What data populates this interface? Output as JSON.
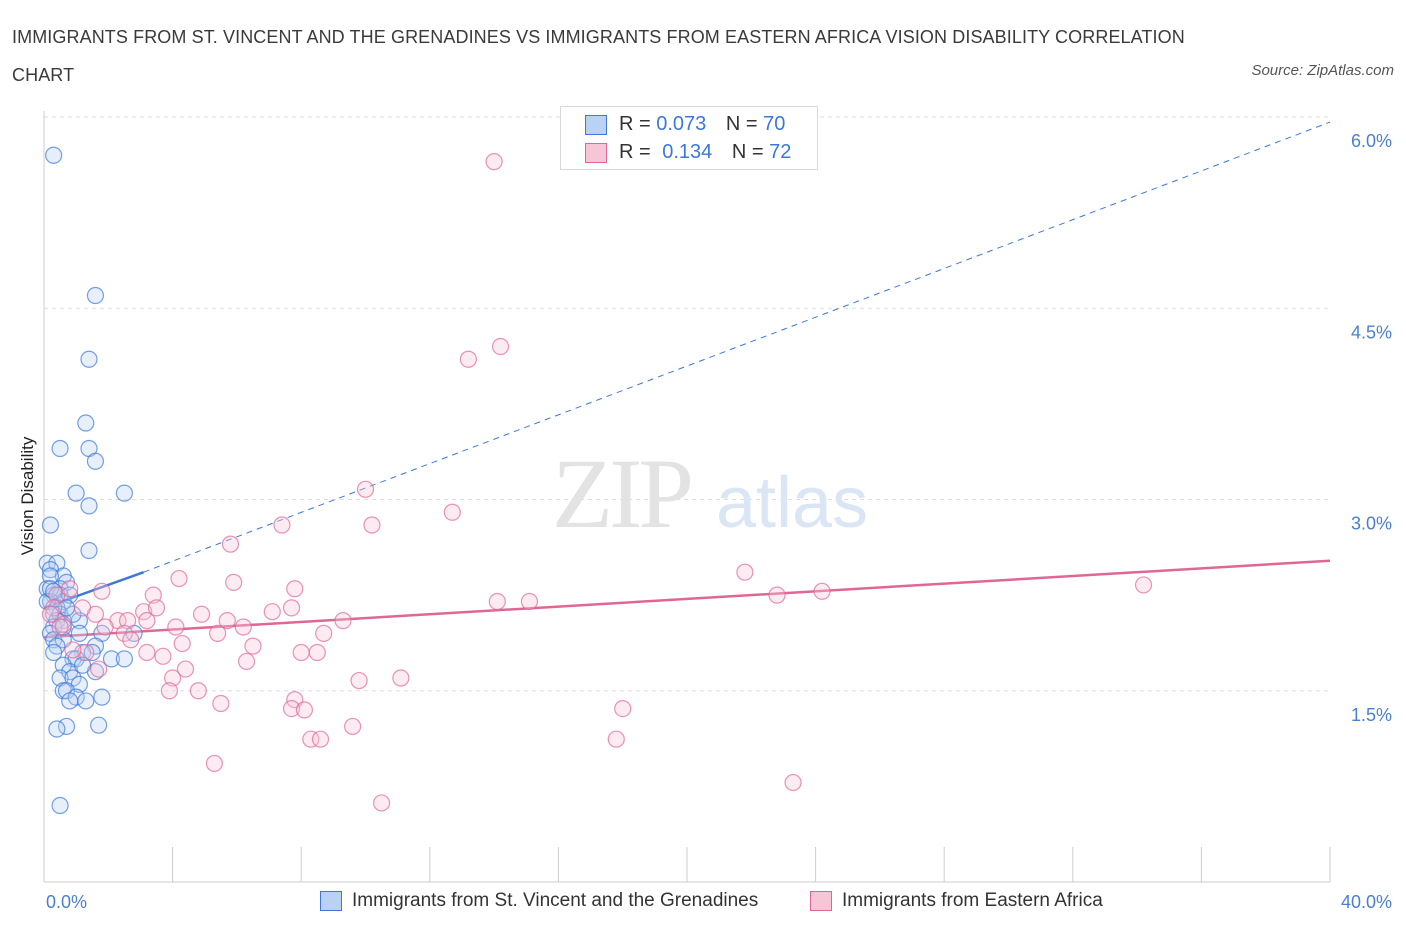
{
  "title": "IMMIGRANTS FROM ST. VINCENT AND THE GRENADINES VS IMMIGRANTS FROM EASTERN AFRICA VISION DISABILITY CORRELATION CHART",
  "source": "Source: ZipAtlas.com",
  "watermark": {
    "zip": "ZIP",
    "atlas": "atlas"
  },
  "legend": {
    "r_label": "R =",
    "n_label": "N =",
    "series1": {
      "r": "0.073",
      "n": "70"
    },
    "series2": {
      "r": "0.134",
      "n": "72"
    }
  },
  "colors": {
    "blue": "#3b78d8",
    "blue_fill": "#b9d1f3",
    "pink": "#e06795",
    "pink_fill": "#f6c5d6",
    "grid": "#dddddd",
    "tick_label": "#4a7fd0"
  },
  "chart_data": {
    "type": "scatter",
    "xlabel": "",
    "ylabel": "Vision Disability",
    "xlim": [
      0,
      40
    ],
    "ylim": [
      0,
      6.0
    ],
    "x_tick_labels": [
      "0.0%",
      "40.0%"
    ],
    "y_ticks": [
      1.5,
      3.0,
      4.5,
      6.0
    ],
    "y_tick_labels": [
      "1.5%",
      "3.0%",
      "4.5%",
      "6.0%"
    ],
    "grid": true,
    "legend_position": "top-center",
    "series": [
      {
        "name": "Immigrants from St. Vincent and the Grenadines",
        "color": "#3b78d8",
        "trend": {
          "x": [
            0,
            3.1
          ],
          "y": [
            2.15,
            2.43
          ],
          "extended_to": [
            40,
            5.96
          ]
        },
        "points": [
          [
            0.3,
            5.7
          ],
          [
            1.6,
            4.6
          ],
          [
            1.4,
            4.1
          ],
          [
            1.3,
            3.6
          ],
          [
            0.5,
            3.4
          ],
          [
            1.4,
            3.4
          ],
          [
            1.6,
            3.3
          ],
          [
            1.0,
            3.05
          ],
          [
            2.5,
            3.05
          ],
          [
            1.4,
            2.95
          ],
          [
            0.2,
            2.8
          ],
          [
            1.4,
            2.6
          ],
          [
            0.1,
            2.5
          ],
          [
            0.4,
            2.5
          ],
          [
            0.2,
            2.45
          ],
          [
            0.6,
            2.4
          ],
          [
            0.2,
            2.4
          ],
          [
            0.7,
            2.35
          ],
          [
            0.5,
            2.3
          ],
          [
            0.1,
            2.3
          ],
          [
            0.3,
            2.25
          ],
          [
            0.5,
            2.25
          ],
          [
            0.2,
            2.2
          ],
          [
            0.6,
            2.2
          ],
          [
            0.1,
            2.2
          ],
          [
            0.4,
            2.15
          ],
          [
            0.8,
            2.25
          ],
          [
            0.3,
            2.1
          ],
          [
            0.5,
            2.1
          ],
          [
            0.6,
            2.05
          ],
          [
            0.4,
            2.05
          ],
          [
            0.3,
            2.0
          ],
          [
            1.1,
            2.05
          ],
          [
            0.2,
            1.95
          ],
          [
            1.1,
            1.95
          ],
          [
            2.8,
            1.95
          ],
          [
            0.3,
            1.9
          ],
          [
            0.6,
            1.9
          ],
          [
            1.8,
            1.95
          ],
          [
            0.4,
            1.85
          ],
          [
            1.6,
            1.85
          ],
          [
            1.2,
            1.8
          ],
          [
            0.3,
            1.8
          ],
          [
            1.5,
            1.8
          ],
          [
            2.1,
            1.75
          ],
          [
            0.9,
            1.75
          ],
          [
            1.0,
            1.75
          ],
          [
            2.5,
            1.75
          ],
          [
            0.6,
            1.7
          ],
          [
            1.6,
            1.65
          ],
          [
            0.8,
            1.65
          ],
          [
            0.5,
            1.6
          ],
          [
            0.9,
            1.6
          ],
          [
            1.1,
            1.55
          ],
          [
            0.6,
            1.5
          ],
          [
            0.7,
            1.5
          ],
          [
            1.0,
            1.45
          ],
          [
            1.8,
            1.45
          ],
          [
            1.3,
            1.42
          ],
          [
            0.8,
            1.42
          ],
          [
            0.7,
            1.22
          ],
          [
            1.7,
            1.23
          ],
          [
            0.4,
            1.2
          ],
          [
            0.5,
            0.6
          ],
          [
            0.2,
            2.3
          ],
          [
            0.6,
            2.0
          ],
          [
            0.9,
            2.1
          ],
          [
            0.3,
            2.28
          ],
          [
            0.7,
            2.15
          ],
          [
            1.2,
            1.7
          ]
        ]
      },
      {
        "name": "Immigrants from Eastern Africa",
        "color": "#e06795",
        "trend": {
          "x": [
            0,
            40
          ],
          "y": [
            1.92,
            2.52
          ]
        },
        "points": [
          [
            14.0,
            5.65
          ],
          [
            14.2,
            4.2
          ],
          [
            13.2,
            4.1
          ],
          [
            10.0,
            3.08
          ],
          [
            12.7,
            2.9
          ],
          [
            10.2,
            2.8
          ],
          [
            7.4,
            2.8
          ],
          [
            5.8,
            2.65
          ],
          [
            21.8,
            2.43
          ],
          [
            4.2,
            2.38
          ],
          [
            5.9,
            2.35
          ],
          [
            7.8,
            2.3
          ],
          [
            24.2,
            2.28
          ],
          [
            34.2,
            2.33
          ],
          [
            3.4,
            2.25
          ],
          [
            22.8,
            2.25
          ],
          [
            14.1,
            2.2
          ],
          [
            15.1,
            2.2
          ],
          [
            7.7,
            2.15
          ],
          [
            3.1,
            2.12
          ],
          [
            4.9,
            2.1
          ],
          [
            7.1,
            2.12
          ],
          [
            1.6,
            2.1
          ],
          [
            2.3,
            2.05
          ],
          [
            3.2,
            2.05
          ],
          [
            5.7,
            2.05
          ],
          [
            2.6,
            2.05
          ],
          [
            9.3,
            2.05
          ],
          [
            0.6,
            2.02
          ],
          [
            6.2,
            2.0
          ],
          [
            4.1,
            2.0
          ],
          [
            2.5,
            1.95
          ],
          [
            8.7,
            1.95
          ],
          [
            1.9,
            2.0
          ],
          [
            0.4,
            2.25
          ],
          [
            0.3,
            2.15
          ],
          [
            0.8,
            2.3
          ],
          [
            0.5,
            2.0
          ],
          [
            0.2,
            2.1
          ],
          [
            5.4,
            1.95
          ],
          [
            2.7,
            1.9
          ],
          [
            6.5,
            1.85
          ],
          [
            4.3,
            1.87
          ],
          [
            8.0,
            1.8
          ],
          [
            3.2,
            1.8
          ],
          [
            8.5,
            1.8
          ],
          [
            3.7,
            1.77
          ],
          [
            1.3,
            1.8
          ],
          [
            6.3,
            1.73
          ],
          [
            4.4,
            1.67
          ],
          [
            1.7,
            1.67
          ],
          [
            4.0,
            1.6
          ],
          [
            9.8,
            1.58
          ],
          [
            11.1,
            1.6
          ],
          [
            3.9,
            1.5
          ],
          [
            4.8,
            1.5
          ],
          [
            7.8,
            1.43
          ],
          [
            5.5,
            1.4
          ],
          [
            7.7,
            1.36
          ],
          [
            8.1,
            1.35
          ],
          [
            18.0,
            1.36
          ],
          [
            8.3,
            1.12
          ],
          [
            8.6,
            1.12
          ],
          [
            17.8,
            1.12
          ],
          [
            9.6,
            1.22
          ],
          [
            5.3,
            0.93
          ],
          [
            23.3,
            0.78
          ],
          [
            10.5,
            0.62
          ],
          [
            1.8,
            2.28
          ],
          [
            1.2,
            2.15
          ],
          [
            0.9,
            1.82
          ],
          [
            3.5,
            2.15
          ]
        ]
      }
    ]
  }
}
